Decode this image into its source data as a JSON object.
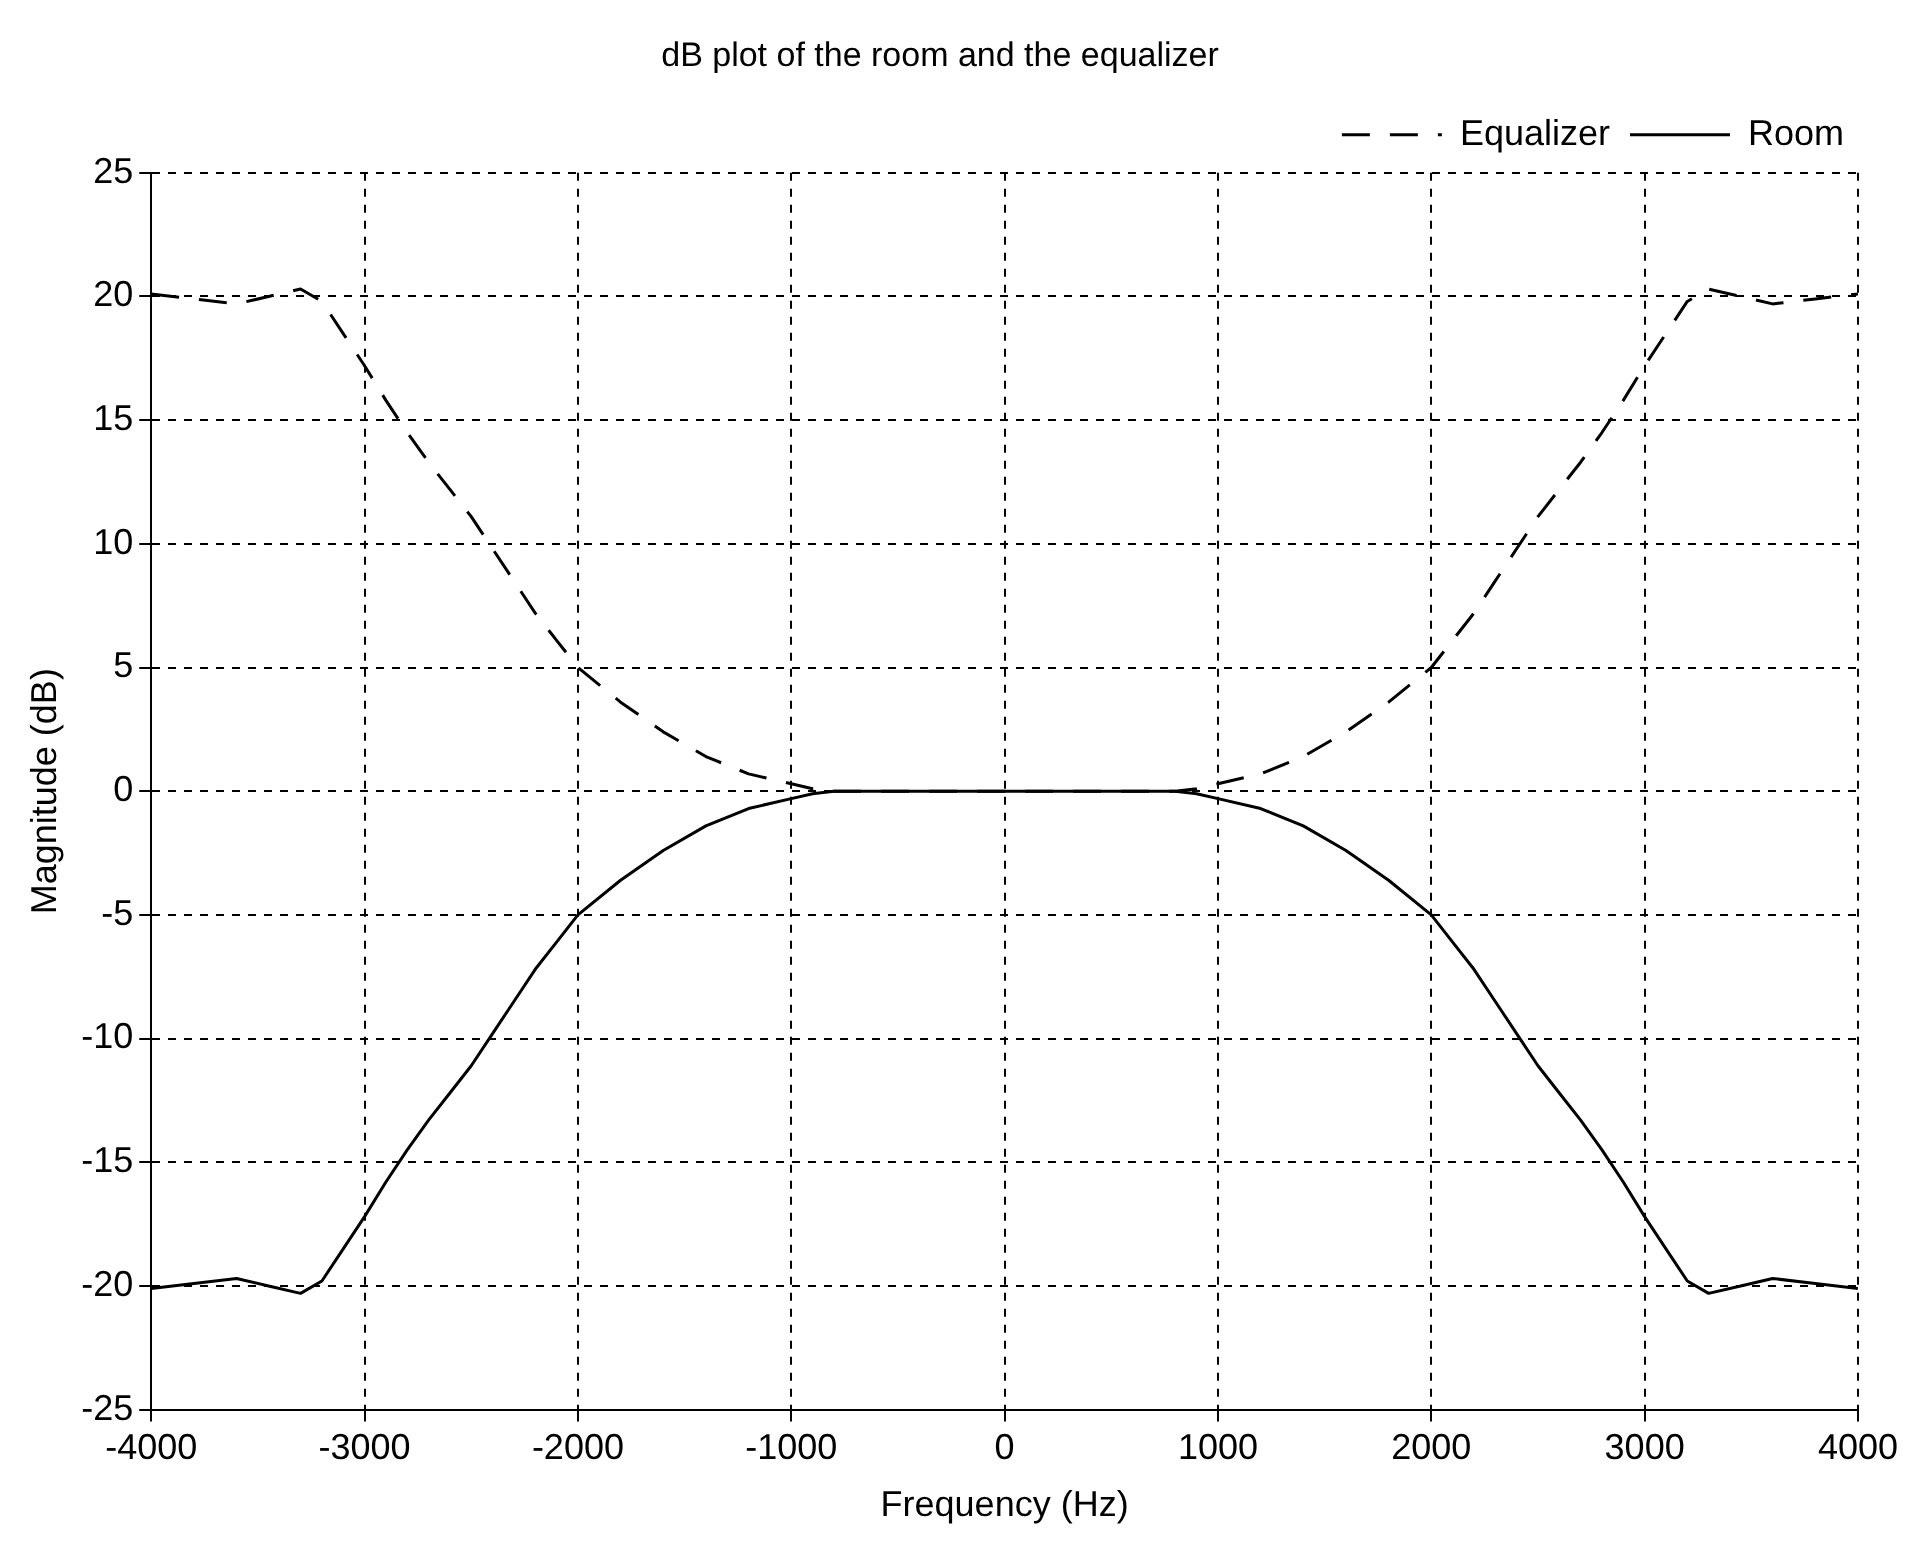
{
  "chart_data": {
    "type": "line",
    "title": "dB plot of the room and the equalizer",
    "xlabel": "Frequency (Hz)",
    "ylabel": "Magnitude (dB)",
    "xlim": [
      -4000,
      4000
    ],
    "xticks": [
      -4000,
      -3000,
      -2000,
      -1000,
      0,
      1000,
      2000,
      3000,
      4000
    ],
    "ylim": [
      -25,
      25
    ],
    "yticks": [
      -25,
      -20,
      -15,
      -10,
      -5,
      0,
      5,
      10,
      15,
      20,
      25
    ],
    "grid": true,
    "legend": "top right",
    "marker": "none",
    "series": [
      {
        "name": "Equalizer",
        "color": "#000000",
        "line_style": "dashed",
        "x": [
          -4000,
          -3800,
          -3600,
          -3450,
          -3300,
          -3200,
          -3100,
          -3000,
          -2900,
          -2800,
          -2700,
          -2600,
          -2500,
          -2400,
          -2300,
          -2200,
          -2100,
          -2000,
          -1800,
          -1600,
          -1400,
          -1200,
          -1000,
          -900,
          -800,
          0,
          800,
          900,
          1000,
          1200,
          1400,
          1600,
          1800,
          2000,
          2100,
          2200,
          2300,
          2400,
          2500,
          2600,
          2700,
          2800,
          2900,
          3000,
          3100,
          3200,
          3300,
          3450,
          3600,
          3800,
          4000
        ],
        "values": [
          20.1,
          19.9,
          19.7,
          20,
          20.3,
          19.8,
          18.5,
          17.2,
          15.8,
          14.5,
          13.3,
          12.2,
          11.1,
          9.8,
          8.5,
          7.2,
          6.1,
          5,
          3.6,
          2.4,
          1.4,
          0.7,
          0.3,
          0.1,
          0,
          0,
          0,
          0.1,
          0.3,
          0.7,
          1.4,
          2.4,
          3.6,
          5,
          6.1,
          7.2,
          8.5,
          9.8,
          11.1,
          12.2,
          13.3,
          14.5,
          15.8,
          17.2,
          18.5,
          19.8,
          20.3,
          20,
          19.7,
          19.9,
          20.1
        ]
      },
      {
        "name": "Room",
        "color": "#000000",
        "line_style": "solid",
        "x": [
          -4000,
          -3800,
          -3600,
          -3450,
          -3300,
          -3200,
          -3100,
          -3000,
          -2900,
          -2800,
          -2700,
          -2600,
          -2500,
          -2400,
          -2300,
          -2200,
          -2100,
          -2000,
          -1800,
          -1600,
          -1400,
          -1200,
          -1000,
          -900,
          -800,
          0,
          800,
          900,
          1000,
          1200,
          1400,
          1600,
          1800,
          2000,
          2100,
          2200,
          2300,
          2400,
          2500,
          2600,
          2700,
          2800,
          2900,
          3000,
          3100,
          3200,
          3300,
          3450,
          3600,
          3800,
          4000
        ],
        "values": [
          -20.1,
          -19.9,
          -19.7,
          -20,
          -20.3,
          -19.8,
          -18.5,
          -17.2,
          -15.8,
          -14.5,
          -13.3,
          -12.2,
          -11.1,
          -9.8,
          -8.5,
          -7.2,
          -6.1,
          -5,
          -3.6,
          -2.4,
          -1.4,
          -0.7,
          -0.3,
          -0.1,
          0,
          0,
          0,
          -0.1,
          -0.3,
          -0.7,
          -1.4,
          -2.4,
          -3.6,
          -5,
          -6.1,
          -7.2,
          -8.5,
          -9.8,
          -11.1,
          -12.2,
          -13.3,
          -14.5,
          -15.8,
          -17.2,
          -18.5,
          -19.8,
          -20.3,
          -20,
          -19.7,
          -19.9,
          -20.1
        ]
      }
    ]
  }
}
